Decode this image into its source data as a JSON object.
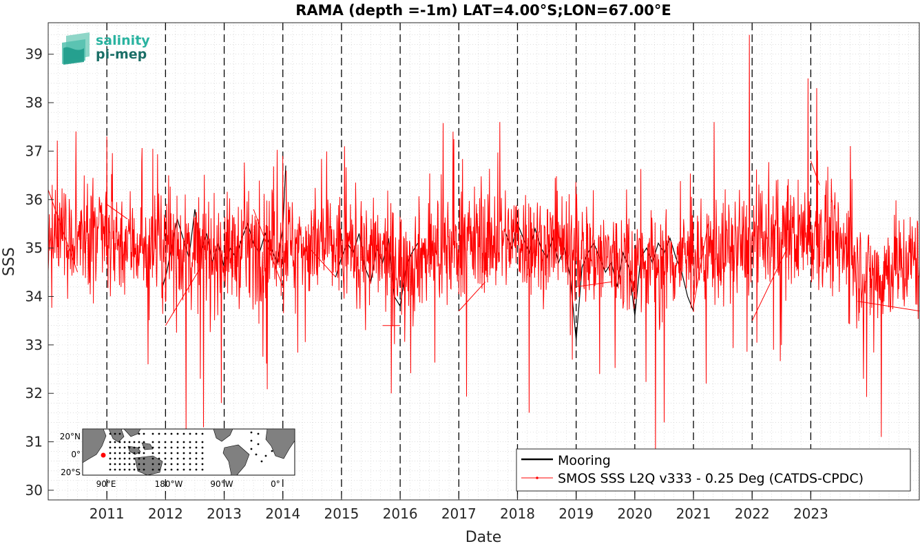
{
  "chart_data": {
    "type": "line",
    "title": "RAMA (depth =-1m) LAT=4.00°S;LON=67.00°E",
    "xlabel": "Date",
    "ylabel": "SSS",
    "xlim": [
      2010.0,
      2024.85
    ],
    "ylim": [
      29.8,
      39.65
    ],
    "x_tick_labels": [
      "2011",
      "2012",
      "2013",
      "2014",
      "2015",
      "2016",
      "2017",
      "2018",
      "2019",
      "2020",
      "2021",
      "2022",
      "2023"
    ],
    "y_tick_labels": [
      "30",
      "31",
      "32",
      "33",
      "34",
      "35",
      "36",
      "37",
      "38",
      "39"
    ],
    "year_boundaries": [
      2011,
      2012,
      2013,
      2014,
      2015,
      2016,
      2017,
      2018,
      2019,
      2020,
      2021,
      2022,
      2023
    ],
    "grid": "dotted minor",
    "legend_position": "bottom-right",
    "series": [
      {
        "name": "Mooring",
        "color": "#000000",
        "points": [
          [
            2011.95,
            34.2
          ],
          [
            2012.02,
            34.5
          ],
          [
            2012.1,
            35.0
          ],
          [
            2012.2,
            35.6
          ],
          [
            2012.3,
            35.2
          ],
          [
            2012.4,
            34.8
          ],
          [
            2012.5,
            35.8
          ],
          [
            2012.6,
            34.9
          ],
          [
            2012.7,
            35.3
          ],
          [
            2012.8,
            34.7
          ],
          [
            2012.9,
            35.1
          ],
          [
            2013.0,
            34.6
          ],
          [
            2013.1,
            35.0
          ],
          [
            2013.2,
            34.8
          ],
          [
            2013.3,
            35.2
          ],
          [
            2013.4,
            35.5
          ],
          [
            2013.5,
            35.1
          ],
          [
            2013.6,
            34.9
          ],
          [
            2013.7,
            35.3
          ],
          [
            2013.8,
            35.0
          ],
          [
            2013.9,
            34.7
          ],
          [
            2014.0,
            35.4
          ],
          [
            2014.05,
            36.7
          ],
          [
            2014.9,
            34.4
          ],
          [
            2015.0,
            34.8
          ],
          [
            2015.1,
            35.1
          ],
          [
            2015.2,
            34.9
          ],
          [
            2015.3,
            35.3
          ],
          [
            2015.4,
            34.6
          ],
          [
            2015.5,
            34.3
          ],
          [
            2015.6,
            35.0
          ],
          [
            2015.7,
            34.7
          ],
          [
            2015.8,
            35.2
          ],
          [
            2015.9,
            34.0
          ],
          [
            2016.0,
            33.8
          ],
          [
            2016.1,
            34.6
          ],
          [
            2016.2,
            34.9
          ],
          [
            2016.3,
            35.1
          ],
          [
            2017.8,
            35.3
          ],
          [
            2017.9,
            35.0
          ],
          [
            2018.0,
            35.5
          ],
          [
            2018.1,
            35.2
          ],
          [
            2018.2,
            34.9
          ],
          [
            2018.3,
            35.4
          ],
          [
            2018.4,
            35.0
          ],
          [
            2018.5,
            34.8
          ],
          [
            2018.6,
            35.2
          ],
          [
            2018.7,
            34.7
          ],
          [
            2018.8,
            35.0
          ],
          [
            2018.9,
            34.4
          ],
          [
            2019.0,
            33.1
          ],
          [
            2019.1,
            34.6
          ],
          [
            2019.2,
            34.9
          ],
          [
            2019.3,
            35.1
          ],
          [
            2019.4,
            34.8
          ],
          [
            2019.5,
            34.5
          ],
          [
            2019.6,
            34.7
          ],
          [
            2019.7,
            34.2
          ],
          [
            2019.8,
            34.9
          ],
          [
            2019.9,
            34.6
          ],
          [
            2020.0,
            33.6
          ],
          [
            2020.1,
            34.8
          ],
          [
            2020.2,
            35.0
          ],
          [
            2020.3,
            34.7
          ],
          [
            2020.4,
            35.1
          ],
          [
            2020.5,
            34.9
          ],
          [
            2020.6,
            35.2
          ],
          [
            2020.7,
            34.8
          ],
          [
            2020.8,
            34.5
          ],
          [
            2020.9,
            34.0
          ],
          [
            2021.0,
            33.7
          ]
        ]
      },
      {
        "name": "SMOS SSS L2Q v333 - 0.25 Deg (CATDS-CPDC)",
        "color": "#ff0000",
        "marker": "dot",
        "seed": 733,
        "n_points": 2200,
        "x_start": 2010.0,
        "x_end": 2024.85,
        "mean_anchors": [
          [
            2010.0,
            35.2
          ],
          [
            2011.0,
            35.2
          ],
          [
            2012.0,
            35.0
          ],
          [
            2013.0,
            34.9
          ],
          [
            2014.0,
            35.1
          ],
          [
            2015.0,
            35.0
          ],
          [
            2016.0,
            34.7
          ],
          [
            2017.0,
            35.1
          ],
          [
            2018.0,
            35.2
          ],
          [
            2019.0,
            34.9
          ],
          [
            2020.0,
            34.7
          ],
          [
            2021.0,
            34.8
          ],
          [
            2022.0,
            35.1
          ],
          [
            2023.0,
            35.3
          ],
          [
            2023.5,
            35.1
          ],
          [
            2024.0,
            34.4
          ],
          [
            2024.85,
            34.8
          ]
        ],
        "spread": 0.55,
        "spikes": [
          [
            2011.0,
            37.3
          ],
          [
            2011.7,
            32.6
          ],
          [
            2012.35,
            31.2
          ],
          [
            2012.65,
            31.3
          ],
          [
            2012.95,
            31.8
          ],
          [
            2015.05,
            37.1
          ],
          [
            2015.85,
            32.0
          ],
          [
            2016.9,
            37.4
          ],
          [
            2017.7,
            37.6
          ],
          [
            2018.2,
            31.6
          ],
          [
            2018.9,
            33.2
          ],
          [
            2020.35,
            30.8
          ],
          [
            2020.5,
            31.4
          ],
          [
            2021.35,
            37.6
          ],
          [
            2021.95,
            39.4
          ],
          [
            2022.5,
            33.0
          ],
          [
            2022.95,
            38.5
          ],
          [
            2023.1,
            38.3
          ],
          [
            2024.2,
            31.1
          ],
          [
            2023.9,
            32.3
          ],
          [
            2012.05,
            36.5
          ],
          [
            2014.0,
            36.9
          ],
          [
            2019.4,
            32.4
          ]
        ],
        "gap_segments": [
          [
            2010.0,
            36.2,
            2010.5,
            34.5
          ],
          [
            2011.0,
            35.9,
            2011.35,
            35.6
          ],
          [
            2012.0,
            33.4,
            2012.6,
            34.6
          ],
          [
            2013.5,
            35.8,
            2014.0,
            34.2
          ],
          [
            2014.45,
            35.0,
            2014.9,
            34.4
          ],
          [
            2015.7,
            33.4,
            2016.0,
            33.4
          ],
          [
            2017.0,
            33.7,
            2017.45,
            34.3
          ],
          [
            2019.0,
            34.2,
            2019.6,
            34.3
          ],
          [
            2019.9,
            34.6,
            2020.0,
            34.0
          ],
          [
            2021.0,
            33.8,
            2021.25,
            35.5
          ],
          [
            2022.0,
            33.5,
            2022.6,
            35.0
          ],
          [
            2023.0,
            36.8,
            2023.15,
            36.3
          ],
          [
            2023.8,
            33.9,
            2024.85,
            33.7
          ]
        ]
      }
    ]
  },
  "logo": {
    "line1": "salinity",
    "line2": "pi-mep",
    "color1": "#2ab3a0",
    "color2": "#1a6e66"
  },
  "inset_map": {
    "lat_labels": [
      "20°N",
      "0°",
      "20°S"
    ],
    "lon_labels": [
      "90°E",
      "180°W",
      "90°W",
      "0°"
    ],
    "marker_color": "#ff0000"
  }
}
